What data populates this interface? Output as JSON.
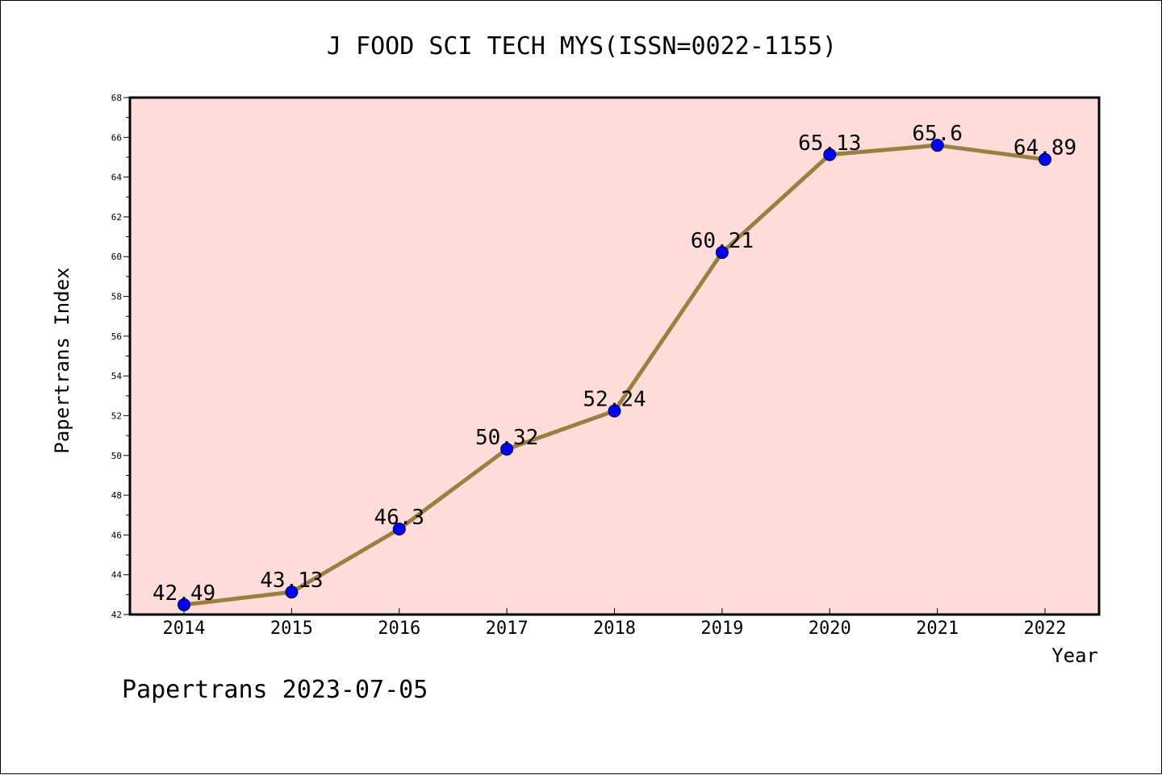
{
  "chart_data": {
    "type": "line",
    "title": "J FOOD SCI TECH MYS(ISSN=0022-1155)",
    "xlabel": "Year",
    "ylabel": "Papertrans Index",
    "categories": [
      "2014",
      "2015",
      "2016",
      "2017",
      "2018",
      "2019",
      "2020",
      "2021",
      "2022"
    ],
    "values": [
      42.49,
      43.13,
      46.3,
      50.32,
      52.24,
      60.21,
      65.13,
      65.6,
      64.89
    ],
    "data_labels": [
      "42.49",
      "43.13",
      "46.3",
      "50.32",
      "52.24",
      "60.21",
      "65.13",
      "65.6",
      "64.89"
    ],
    "ylim": [
      42,
      68
    ],
    "yticks": [
      "42",
      "44",
      "46",
      "48",
      "50",
      "52",
      "54",
      "56",
      "58",
      "60",
      "62",
      "64",
      "66",
      "68"
    ],
    "grid": false,
    "legend": "none",
    "colors": {
      "plot_background": "#fddcda",
      "line": "#9a8040",
      "marker": "#0000ff"
    }
  },
  "footer": "Papertrans 2023-07-05"
}
